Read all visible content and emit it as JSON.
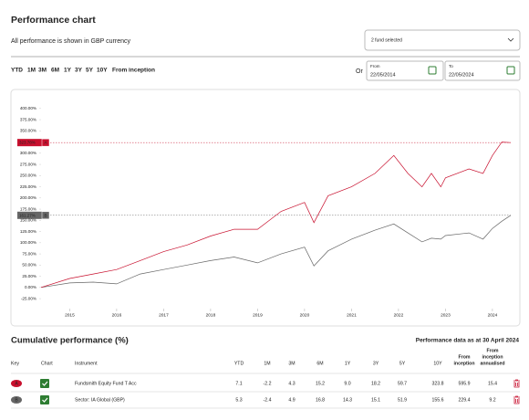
{
  "header": {
    "title": "Performance chart",
    "subtitle": "All performance is shown in GBP currency",
    "fund_select": "2 fund selected"
  },
  "controls": {
    "periods": [
      "YTD",
      "1M",
      "3M",
      "6M",
      "1Y",
      "3Y",
      "5Y",
      "10Y",
      "From inception"
    ],
    "or": "Or",
    "from_label": "From",
    "from_date": "22/05/2014",
    "to_label": "To",
    "to_date": "22/05/2024"
  },
  "chart_data": {
    "type": "line",
    "x": [
      2014.39,
      2015,
      2015.5,
      2016,
      2016.5,
      2017,
      2017.5,
      2018,
      2018.5,
      2019,
      2019.5,
      2020,
      2020.2,
      2020.5,
      2021,
      2021.5,
      2021.9,
      2022.2,
      2022.5,
      2022.7,
      2022.9,
      2023,
      2023.5,
      2023.8,
      2024,
      2024.2,
      2024.39
    ],
    "series": [
      {
        "name": "A",
        "color": "#c8102e",
        "current_label": "323.78%",
        "values": [
          0,
          20,
          30,
          40,
          60,
          80,
          95,
          115,
          130,
          130,
          170,
          190,
          145,
          205,
          225,
          255,
          295,
          255,
          225,
          255,
          225,
          245,
          265,
          255,
          295,
          325,
          323.78
        ]
      },
      {
        "name": "B",
        "color": "#666666",
        "current_label": "161.27%",
        "values": [
          0,
          10,
          12,
          8,
          30,
          40,
          50,
          60,
          68,
          55,
          75,
          90,
          48,
          82,
          108,
          128,
          142,
          122,
          102,
          110,
          108,
          116,
          122,
          108,
          132,
          148,
          161.27
        ]
      }
    ],
    "xlim": [
      2014.39,
      2024.39
    ],
    "xticks": [
      2015,
      2016,
      2017,
      2018,
      2019,
      2020,
      2021,
      2022,
      2023,
      2024
    ],
    "ylim": [
      -35,
      420
    ],
    "yticks": [
      {
        "value": -25,
        "label": "-25.00%"
      },
      {
        "value": 0,
        "label": "0.00%"
      },
      {
        "value": 25,
        "label": "25.00%"
      },
      {
        "value": 50,
        "label": "50.00%"
      },
      {
        "value": 75,
        "label": "75.00%"
      },
      {
        "value": 100,
        "label": "100.00%"
      },
      {
        "value": 125,
        "label": "125.00%"
      },
      {
        "value": 150,
        "label": "150.00%"
      },
      {
        "value": 175,
        "label": "175.00%"
      },
      {
        "value": 200,
        "label": "200.00%"
      },
      {
        "value": 225,
        "label": "225.00%"
      },
      {
        "value": 250,
        "label": "250.00%"
      },
      {
        "value": 275,
        "label": "275.00%"
      },
      {
        "value": 300,
        "label": "300.00%"
      },
      {
        "value": 325,
        "label": "325.00%"
      },
      {
        "value": 350,
        "label": "350.00%"
      },
      {
        "value": 375,
        "label": "375.00%"
      },
      {
        "value": 400,
        "label": "400.00%"
      }
    ],
    "grid": false
  },
  "table": {
    "title": "Cumulative performance (%)",
    "note": "Performance data as at 30 April 2024",
    "columns": [
      [
        "Key"
      ],
      [
        "Chart"
      ],
      [
        "Instrument"
      ],
      [
        "YTD"
      ],
      [
        "1M"
      ],
      [
        "3M"
      ],
      [
        "6M"
      ],
      [
        "1Y"
      ],
      [
        "3Y"
      ],
      [
        "5Y"
      ],
      [
        "10Y"
      ],
      [
        "From",
        "inception"
      ],
      [
        "From",
        "inception",
        "annualised"
      ]
    ],
    "rows": [
      {
        "key": "A",
        "instrument": "Fundsmith Equity Fund T Acc",
        "values": [
          "7.1",
          "-2.2",
          "4.3",
          "15.2",
          "9.0",
          "18.2",
          "59.7",
          "323.8",
          "595.9",
          "15.4"
        ]
      },
      {
        "key": "B",
        "instrument": "Sector: IA Global (GBP)",
        "values": [
          "5.3",
          "-2.4",
          "4.9",
          "16.8",
          "14.3",
          "15.1",
          "51.9",
          "155.6",
          "229.4",
          "9.2"
        ]
      }
    ]
  }
}
